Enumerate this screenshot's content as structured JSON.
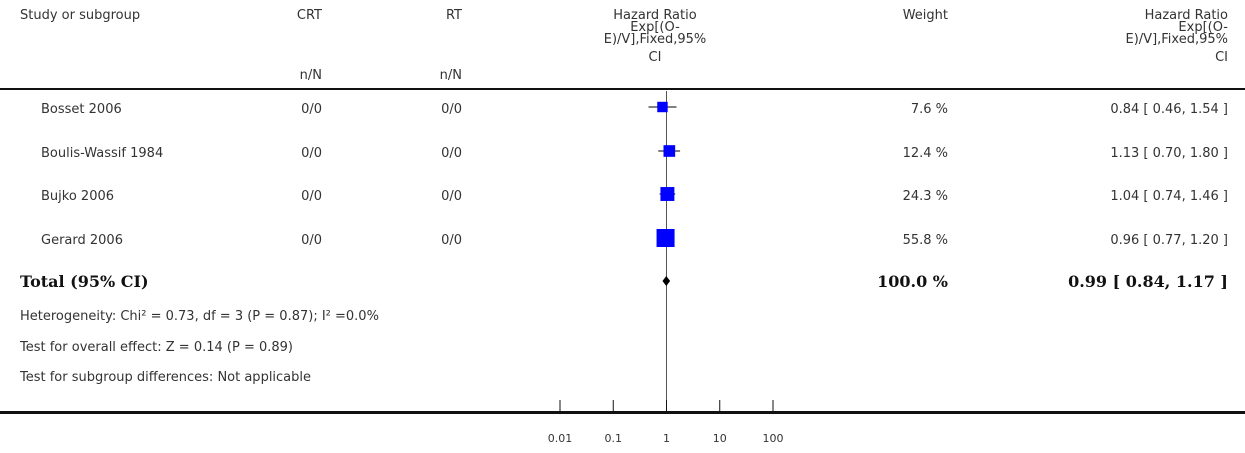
{
  "header": {
    "study": "Study or subgroup",
    "crt": "CRT",
    "rt": "RT",
    "crt_sub": "n/N",
    "rt_sub": "n/N",
    "hr_plot": [
      "Hazard Ratio",
      "Exp[(O-",
      "E)/V],Fixed,95%",
      "CI"
    ],
    "weight": "Weight",
    "hr_col": [
      "Hazard Ratio",
      "Exp[(O-",
      "E)/V],Fixed,95%",
      "CI"
    ]
  },
  "rows": [
    {
      "study": "Bosset 2006",
      "crt": "0/0",
      "rt": "0/0",
      "weight": "7.6 %",
      "ci": "0.84 [ 0.46, 1.54 ]"
    },
    {
      "study": "Boulis-Wassif 1984",
      "crt": "0/0",
      "rt": "0/0",
      "weight": "12.4 %",
      "ci": "1.13 [ 0.70, 1.80 ]"
    },
    {
      "study": "Bujko 2006",
      "crt": "0/0",
      "rt": "0/0",
      "weight": "24.3 %",
      "ci": "1.04 [ 0.74, 1.46 ]"
    },
    {
      "study": "Gerard 2006",
      "crt": "0/0",
      "rt": "0/0",
      "weight": "55.8 %",
      "ci": "0.96 [ 0.77, 1.20 ]"
    }
  ],
  "total": {
    "label": "Total (95% CI)",
    "weight": "100.0 %",
    "ci": "0.99 [ 0.84, 1.17 ]"
  },
  "notes": {
    "heterogeneity": "Heterogeneity: Chi² = 0.73, df = 3 (P = 0.87); I² =0.0%",
    "overall": "Test for overall effect: Z = 0.14 (P = 0.89)",
    "subgroup": "Test for subgroup differences: Not applicable"
  },
  "colors": {
    "marker": "#0000ff",
    "diamond": "#000000",
    "axis": "#111111"
  },
  "chart_data": {
    "type": "scatter",
    "scale": "log",
    "xlim": [
      0.01,
      100
    ],
    "ticks": [
      0.01,
      0.1,
      1,
      10,
      100
    ],
    "tick_labels": [
      "0.01",
      "0.1",
      "1",
      "10",
      "100"
    ],
    "reference_line": 1,
    "studies": [
      {
        "name": "Bosset 2006",
        "hr": 0.84,
        "lo": 0.46,
        "hi": 1.54,
        "weight": 7.6
      },
      {
        "name": "Boulis-Wassif 1984",
        "hr": 1.13,
        "lo": 0.7,
        "hi": 1.8,
        "weight": 12.4
      },
      {
        "name": "Bujko 2006",
        "hr": 1.04,
        "lo": 0.74,
        "hi": 1.46,
        "weight": 24.3
      },
      {
        "name": "Gerard 2006",
        "hr": 0.96,
        "lo": 0.77,
        "hi": 1.2,
        "weight": 55.8
      }
    ],
    "total": {
      "hr": 0.99,
      "lo": 0.84,
      "hi": 1.17
    }
  }
}
